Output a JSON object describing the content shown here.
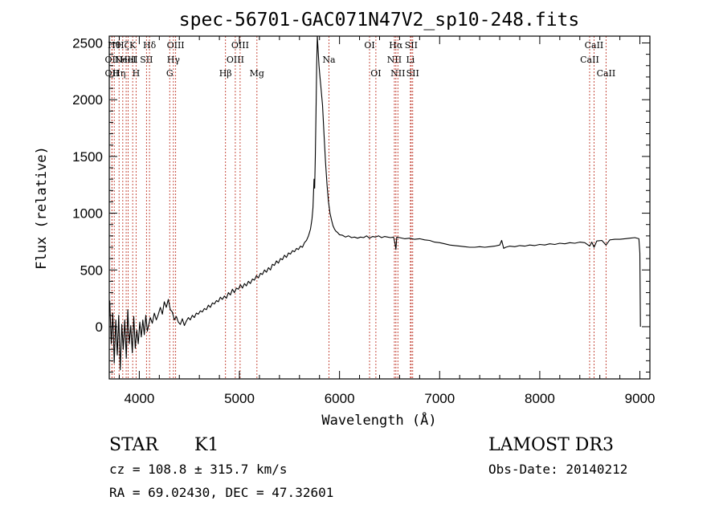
{
  "chart_data": {
    "type": "line",
    "title": "spec-56701-GAC071N47V2_sp10-248.fits",
    "xlabel": "Wavelength (Å)",
    "ylabel": "Flux (relative)",
    "xlim": [
      3700,
      9100
    ],
    "ylim": [
      -460,
      2560
    ],
    "x_ticks": [
      4000,
      5000,
      6000,
      7000,
      8000,
      9000
    ],
    "y_ticks": [
      0,
      500,
      1000,
      1500,
      2000,
      2500
    ],
    "series": [
      {
        "name": "spectrum",
        "points": [
          [
            3705,
            230
          ],
          [
            3720,
            -150
          ],
          [
            3735,
            120
          ],
          [
            3750,
            -320
          ],
          [
            3765,
            60
          ],
          [
            3780,
            -250
          ],
          [
            3795,
            100
          ],
          [
            3810,
            -380
          ],
          [
            3825,
            20
          ],
          [
            3840,
            -200
          ],
          [
            3855,
            60
          ],
          [
            3870,
            -280
          ],
          [
            3885,
            150
          ],
          [
            3900,
            -150
          ],
          [
            3915,
            10
          ],
          [
            3930,
            -230
          ],
          [
            3945,
            90
          ],
          [
            3960,
            -190
          ],
          [
            3975,
            -30
          ],
          [
            3990,
            -150
          ],
          [
            4005,
            40
          ],
          [
            4020,
            -90
          ],
          [
            4035,
            60
          ],
          [
            4050,
            -70
          ],
          [
            4065,
            100
          ],
          [
            4080,
            -40
          ],
          [
            4095,
            20
          ],
          [
            4110,
            80
          ],
          [
            4130,
            30
          ],
          [
            4150,
            120
          ],
          [
            4170,
            60
          ],
          [
            4190,
            110
          ],
          [
            4210,
            170
          ],
          [
            4230,
            110
          ],
          [
            4250,
            220
          ],
          [
            4270,
            170
          ],
          [
            4290,
            240
          ],
          [
            4310,
            150
          ],
          [
            4330,
            130
          ],
          [
            4350,
            60
          ],
          [
            4370,
            90
          ],
          [
            4390,
            40
          ],
          [
            4410,
            20
          ],
          [
            4430,
            70
          ],
          [
            4450,
            10
          ],
          [
            4470,
            50
          ],
          [
            4490,
            80
          ],
          [
            4510,
            60
          ],
          [
            4530,
            100
          ],
          [
            4550,
            80
          ],
          [
            4570,
            120
          ],
          [
            4590,
            110
          ],
          [
            4610,
            140
          ],
          [
            4630,
            130
          ],
          [
            4650,
            160
          ],
          [
            4670,
            150
          ],
          [
            4690,
            190
          ],
          [
            4710,
            170
          ],
          [
            4730,
            210
          ],
          [
            4750,
            200
          ],
          [
            4770,
            230
          ],
          [
            4790,
            220
          ],
          [
            4810,
            260
          ],
          [
            4830,
            240
          ],
          [
            4850,
            270
          ],
          [
            4870,
            250
          ],
          [
            4890,
            300
          ],
          [
            4910,
            280
          ],
          [
            4930,
            330
          ],
          [
            4950,
            300
          ],
          [
            4970,
            340
          ],
          [
            4990,
            330
          ],
          [
            5010,
            370
          ],
          [
            5030,
            340
          ],
          [
            5050,
            380
          ],
          [
            5070,
            360
          ],
          [
            5090,
            400
          ],
          [
            5110,
            380
          ],
          [
            5130,
            420
          ],
          [
            5150,
            410
          ],
          [
            5170,
            450
          ],
          [
            5190,
            430
          ],
          [
            5210,
            470
          ],
          [
            5230,
            460
          ],
          [
            5250,
            500
          ],
          [
            5270,
            480
          ],
          [
            5290,
            520
          ],
          [
            5310,
            500
          ],
          [
            5330,
            550
          ],
          [
            5350,
            540
          ],
          [
            5370,
            580
          ],
          [
            5390,
            560
          ],
          [
            5410,
            600
          ],
          [
            5430,
            590
          ],
          [
            5450,
            630
          ],
          [
            5470,
            610
          ],
          [
            5490,
            650
          ],
          [
            5510,
            640
          ],
          [
            5530,
            670
          ],
          [
            5550,
            660
          ],
          [
            5570,
            690
          ],
          [
            5590,
            680
          ],
          [
            5610,
            710
          ],
          [
            5630,
            700
          ],
          [
            5650,
            740
          ],
          [
            5670,
            760
          ],
          [
            5690,
            800
          ],
          [
            5710,
            860
          ],
          [
            5725,
            950
          ],
          [
            5735,
            1050
          ],
          [
            5745,
            1300
          ],
          [
            5752,
            1220
          ],
          [
            5758,
            1500
          ],
          [
            5765,
            1900
          ],
          [
            5772,
            2300
          ],
          [
            5778,
            2560
          ],
          [
            5785,
            2450
          ],
          [
            5795,
            2300
          ],
          [
            5805,
            2200
          ],
          [
            5815,
            2100
          ],
          [
            5830,
            1950
          ],
          [
            5845,
            1700
          ],
          [
            5860,
            1450
          ],
          [
            5875,
            1250
          ],
          [
            5890,
            1100
          ],
          [
            5905,
            1000
          ],
          [
            5920,
            940
          ],
          [
            5935,
            890
          ],
          [
            5950,
            860
          ],
          [
            5965,
            840
          ],
          [
            5980,
            830
          ],
          [
            6000,
            810
          ],
          [
            6030,
            805
          ],
          [
            6060,
            790
          ],
          [
            6090,
            800
          ],
          [
            6120,
            785
          ],
          [
            6150,
            790
          ],
          [
            6180,
            780
          ],
          [
            6210,
            790
          ],
          [
            6240,
            785
          ],
          [
            6270,
            800
          ],
          [
            6300,
            780
          ],
          [
            6330,
            795
          ],
          [
            6360,
            790
          ],
          [
            6390,
            800
          ],
          [
            6420,
            785
          ],
          [
            6450,
            795
          ],
          [
            6480,
            790
          ],
          [
            6510,
            785
          ],
          [
            6540,
            790
          ],
          [
            6555,
            730
          ],
          [
            6563,
            680
          ],
          [
            6572,
            790
          ],
          [
            6600,
            785
          ],
          [
            6650,
            775
          ],
          [
            6700,
            780
          ],
          [
            6750,
            770
          ],
          [
            6800,
            775
          ],
          [
            6850,
            765
          ],
          [
            6900,
            760
          ],
          [
            6950,
            745
          ],
          [
            7000,
            740
          ],
          [
            7050,
            730
          ],
          [
            7100,
            720
          ],
          [
            7150,
            715
          ],
          [
            7200,
            710
          ],
          [
            7250,
            705
          ],
          [
            7300,
            700
          ],
          [
            7350,
            700
          ],
          [
            7400,
            705
          ],
          [
            7450,
            700
          ],
          [
            7500,
            705
          ],
          [
            7550,
            710
          ],
          [
            7600,
            720
          ],
          [
            7620,
            760
          ],
          [
            7640,
            690
          ],
          [
            7660,
            700
          ],
          [
            7700,
            710
          ],
          [
            7750,
            705
          ],
          [
            7800,
            715
          ],
          [
            7850,
            710
          ],
          [
            7900,
            720
          ],
          [
            7950,
            715
          ],
          [
            8000,
            725
          ],
          [
            8050,
            720
          ],
          [
            8100,
            730
          ],
          [
            8150,
            725
          ],
          [
            8200,
            735
          ],
          [
            8250,
            730
          ],
          [
            8300,
            740
          ],
          [
            8350,
            735
          ],
          [
            8400,
            745
          ],
          [
            8450,
            740
          ],
          [
            8498,
            710
          ],
          [
            8520,
            745
          ],
          [
            8542,
            700
          ],
          [
            8570,
            755
          ],
          [
            8620,
            760
          ],
          [
            8662,
            720
          ],
          [
            8700,
            765
          ],
          [
            8750,
            770
          ],
          [
            8800,
            770
          ],
          [
            8850,
            775
          ],
          [
            8900,
            780
          ],
          [
            8950,
            785
          ],
          [
            8990,
            775
          ],
          [
            9000,
            650
          ],
          [
            9005,
            0
          ]
        ]
      }
    ],
    "lines": [
      {
        "x": 3727,
        "label": "OII",
        "row": 1
      },
      {
        "x": 3727,
        "label": "OII",
        "row": 2
      },
      {
        "x": 3750,
        "label": "Hθ",
        "row": 0
      },
      {
        "x": 3798,
        "label": "Hη",
        "row": 2
      },
      {
        "x": 3835,
        "label": "Hζ",
        "row": 0
      },
      {
        "x": 3869,
        "label": "NeIII",
        "row": 1
      },
      {
        "x": 3889,
        "label": "HeI",
        "row": 1
      },
      {
        "x": 3934,
        "label": "K",
        "row": 0
      },
      {
        "x": 3968,
        "label": "H",
        "row": 2
      },
      {
        "x": 4072,
        "label": "SII",
        "row": 1
      },
      {
        "x": 4102,
        "label": "Hδ",
        "row": 0
      },
      {
        "x": 4304,
        "label": "G",
        "row": 2
      },
      {
        "x": 4341,
        "label": "Hγ",
        "row": 1
      },
      {
        "x": 4363,
        "label": "OIII",
        "row": 0
      },
      {
        "x": 4861,
        "label": "Hβ",
        "row": 2
      },
      {
        "x": 4959,
        "label": "OIII",
        "row": 1
      },
      {
        "x": 5007,
        "label": "OIII",
        "row": 0
      },
      {
        "x": 5175,
        "label": "Mg",
        "row": 2
      },
      {
        "x": 5894,
        "label": "Na",
        "row": 1
      },
      {
        "x": 6300,
        "label": "OI",
        "row": 0
      },
      {
        "x": 6363,
        "label": "OI",
        "row": 2
      },
      {
        "x": 6548,
        "label": "NII",
        "row": 1
      },
      {
        "x": 6563,
        "label": "Hα",
        "row": 0
      },
      {
        "x": 6583,
        "label": "NII",
        "row": 2
      },
      {
        "x": 6708,
        "label": "Li",
        "row": 1
      },
      {
        "x": 6716,
        "label": "SII",
        "row": 0
      },
      {
        "x": 6731,
        "label": "SII",
        "row": 2
      },
      {
        "x": 8498,
        "label": "CaII",
        "row": 1
      },
      {
        "x": 8542,
        "label": "CaII",
        "row": 0
      },
      {
        "x": 8662,
        "label": "CaII",
        "row": 2
      }
    ]
  },
  "info": {
    "class": "STAR",
    "subclass": "K1",
    "survey": "LAMOST DR3",
    "cz": "cz = 108.8 ± 315.7 km/s",
    "obs_date": "Obs-Date: 20140212",
    "radec": "RA =  69.02430, DEC =  47.32601"
  },
  "colors": {
    "line_marker": "#c0392b",
    "spectrum": "#000000",
    "axes": "#000000"
  }
}
